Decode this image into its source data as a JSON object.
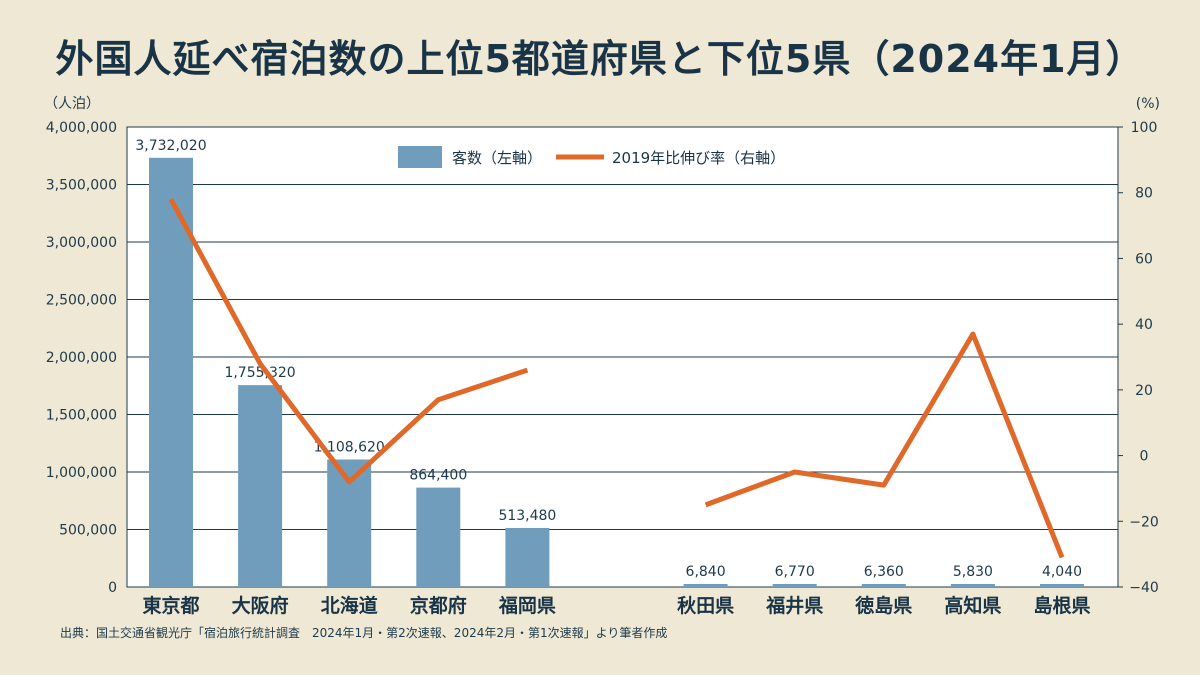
{
  "title": "外国人延べ宿泊数の上位5都道府県と下位5県（2024年1月）",
  "source": "出典：国土交通省観光庁「宿泊旅行統計調査　2024年1月・第2次速報、2024年2月・第1次速報」より筆者作成",
  "chart_data": {
    "type": "bar",
    "categories": [
      "東京都",
      "大阪府",
      "北海道",
      "京都府",
      "福岡県",
      "",
      "秋田県",
      "福井県",
      "徳島県",
      "高知県",
      "島根県"
    ],
    "series": [
      {
        "name": "客数（左軸）",
        "type": "bar",
        "axis": "left",
        "values": [
          3732020,
          1755320,
          1108620,
          864400,
          513480,
          null,
          6840,
          6770,
          6360,
          5830,
          4040
        ],
        "labels": [
          "3,732,020",
          "1,755,320",
          "1,108,620",
          "864,400",
          "513,480",
          "",
          "6,840",
          "6,770",
          "6,360",
          "5,830",
          "4,040"
        ],
        "color": "#6f9dbb"
      },
      {
        "name": "2019年比伸び率（右軸）",
        "type": "line",
        "axis": "right",
        "values": [
          78,
          28,
          -8,
          17,
          26,
          null,
          -15,
          -5,
          -9,
          37,
          -31
        ],
        "color": "#e0692a"
      }
    ],
    "left_axis": {
      "unit": "（人泊）",
      "ylim": [
        0,
        4000000
      ],
      "ticks": [
        0,
        500000,
        1000000,
        1500000,
        2000000,
        2500000,
        3000000,
        3500000,
        4000000
      ],
      "tick_labels": [
        "0",
        "500,000",
        "1,000,000",
        "1,500,000",
        "2,000,000",
        "2,500,000",
        "3,000,000",
        "3,500,000",
        "4,000,000"
      ]
    },
    "right_axis": {
      "unit": "(%)",
      "ylim": [
        -40,
        100
      ],
      "ticks": [
        -40,
        -20,
        0,
        20,
        40,
        60,
        80,
        100
      ],
      "tick_labels": [
        "−40",
        "−20",
        "0",
        "20",
        "40",
        "60",
        "80",
        "100"
      ]
    },
    "grid": true,
    "legend": "top-center"
  }
}
